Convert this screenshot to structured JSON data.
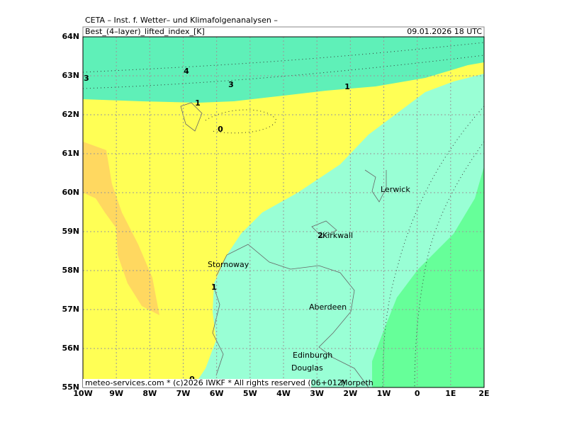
{
  "header": {
    "institute": "CETA – Inst. f. Wetter– und Klimafolgenanalysen –",
    "field": "Best_(4–layer)_lifted_index_[K]",
    "date": "09.01.2026 18 UTC"
  },
  "axes": {
    "lon_labels": [
      "10W",
      "9W",
      "8W",
      "7W",
      "6W",
      "5W",
      "4W",
      "3W",
      "2W",
      "1W",
      "0",
      "1E",
      "2E"
    ],
    "lat_labels": [
      "64N",
      "63N",
      "62N",
      "61N",
      "60N",
      "59N",
      "58N",
      "57N",
      "56N",
      "55N"
    ]
  },
  "places": [
    "Lerwick",
    "Kirkwall",
    "Stornoway",
    "Aberdeen",
    "Edinburgh",
    "Douglas",
    "Morpeth"
  ],
  "contour_labels": [
    4,
    3,
    3,
    1,
    1,
    0,
    2,
    1,
    0
  ],
  "footer": "meteo-services.com * (c)2026 IWKF * All rights reserved (06+012)"
}
